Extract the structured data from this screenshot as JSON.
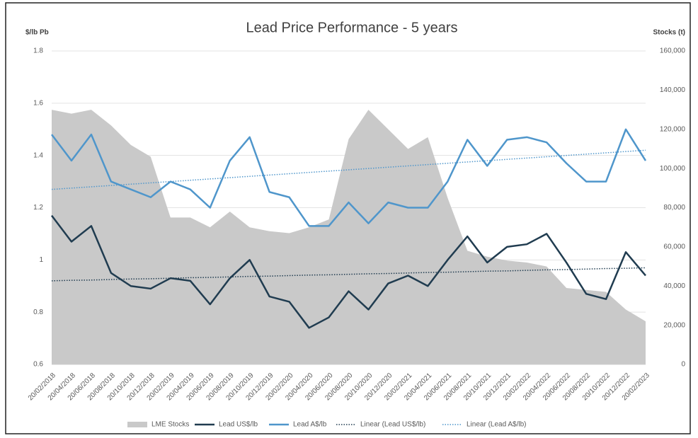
{
  "chart_data": {
    "type": "line",
    "title": "Lead Price Performance - 5 years",
    "y_label": "$/lb Pb",
    "y2_label": "Stocks (t)",
    "categories": [
      "20/02/2018",
      "20/04/2018",
      "20/06/2018",
      "20/08/2018",
      "20/10/2018",
      "20/12/2018",
      "20/02/2019",
      "20/04/2019",
      "20/06/2019",
      "20/08/2019",
      "20/10/2019",
      "20/12/2019",
      "20/02/2020",
      "20/04/2020",
      "20/06/2020",
      "20/08/2020",
      "20/10/2020",
      "20/12/2020",
      "20/02/2021",
      "20/04/2021",
      "20/06/2021",
      "20/08/2021",
      "20/10/2021",
      "20/12/2021",
      "20/02/2022",
      "20/04/2022",
      "20/06/2022",
      "20/08/2022",
      "20/10/2022",
      "20/12/2022",
      "20/02/2023"
    ],
    "ylim": [
      0.6,
      1.8
    ],
    "yticks": [
      0.6,
      0.8,
      1,
      1.2,
      1.4,
      1.6,
      1.8
    ],
    "y2lim": [
      0,
      160000
    ],
    "y2ticks": [
      0,
      {
        "value": 20000,
        "label": "20,000"
      },
      {
        "value": 40000,
        "label": "40,000"
      },
      {
        "value": 60000,
        "label": "60,000"
      },
      {
        "value": 80000,
        "label": "80,000"
      },
      {
        "value": 100000,
        "label": "100,000"
      },
      {
        "value": 120000,
        "label": "120,000"
      },
      {
        "value": 140000,
        "label": "140,000"
      },
      {
        "value": 160000,
        "label": "160,000"
      }
    ],
    "grid": true,
    "legend": "bottom",
    "series": [
      {
        "name": "LME Stocks",
        "type": "area",
        "axis": "y2",
        "color": "#c9c9c9",
        "values": [
          130000,
          128000,
          130000,
          122000,
          112000,
          106000,
          75000,
          75000,
          70000,
          78000,
          70000,
          68000,
          67000,
          70000,
          74000,
          115000,
          130000,
          120000,
          110000,
          116000,
          85000,
          58000,
          55000,
          53000,
          52000,
          50000,
          39000,
          38000,
          37000,
          28000,
          22000
        ]
      },
      {
        "name": "Lead US$/lb",
        "type": "line",
        "color": "#203c50",
        "values": [
          1.17,
          1.07,
          1.13,
          0.95,
          0.9,
          0.89,
          0.93,
          0.92,
          0.83,
          0.93,
          1.0,
          0.86,
          0.84,
          0.74,
          0.78,
          0.88,
          0.81,
          0.91,
          0.94,
          0.9,
          1.0,
          1.09,
          0.99,
          1.05,
          1.06,
          1.1,
          0.99,
          0.87,
          0.85,
          1.03,
          0.94
        ]
      },
      {
        "name": "Lead A$/lb",
        "type": "line",
        "color": "#4f96cb",
        "values": [
          1.48,
          1.38,
          1.48,
          1.3,
          1.27,
          1.24,
          1.3,
          1.27,
          1.2,
          1.38,
          1.47,
          1.26,
          1.24,
          1.13,
          1.13,
          1.22,
          1.14,
          1.22,
          1.2,
          1.2,
          1.3,
          1.46,
          1.36,
          1.46,
          1.47,
          1.45,
          1.37,
          1.3,
          1.3,
          1.5,
          1.38
        ]
      },
      {
        "name": "Linear (Lead US$/lb)",
        "type": "line",
        "line_style": "dotted",
        "color": "#203c50",
        "values": [
          0.92,
          0.922,
          0.923,
          0.925,
          0.927,
          0.928,
          0.93,
          0.932,
          0.933,
          0.935,
          0.937,
          0.938,
          0.94,
          0.942,
          0.943,
          0.945,
          0.947,
          0.948,
          0.95,
          0.952,
          0.953,
          0.955,
          0.957,
          0.958,
          0.96,
          0.962,
          0.963,
          0.965,
          0.967,
          0.968,
          0.97
        ]
      },
      {
        "name": "Linear (Lead A$/lb)",
        "type": "line",
        "line_style": "dotted",
        "color": "#4f96cb",
        "values": [
          1.27,
          1.275,
          1.28,
          1.285,
          1.29,
          1.295,
          1.3,
          1.305,
          1.31,
          1.315,
          1.32,
          1.325,
          1.33,
          1.335,
          1.34,
          1.345,
          1.35,
          1.355,
          1.36,
          1.365,
          1.37,
          1.375,
          1.38,
          1.385,
          1.39,
          1.395,
          1.4,
          1.405,
          1.41,
          1.415,
          1.42
        ]
      }
    ]
  }
}
